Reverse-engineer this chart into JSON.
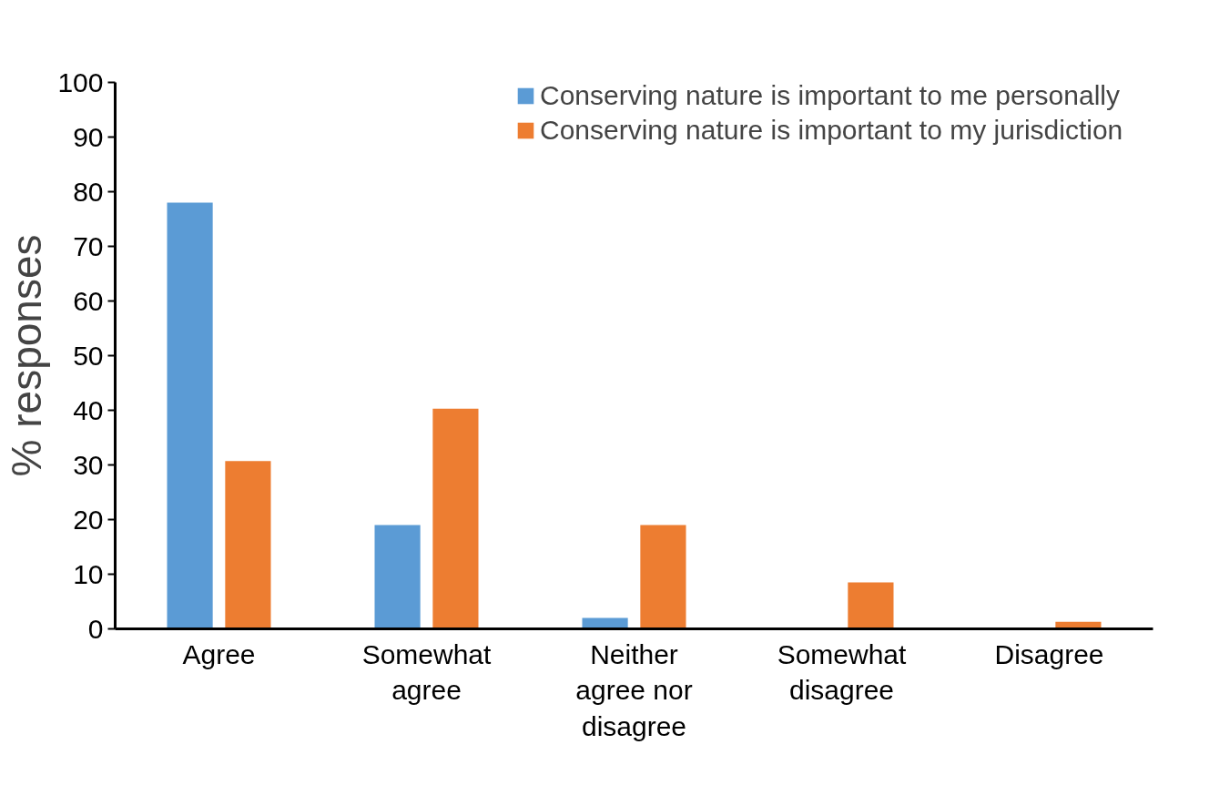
{
  "chart_data": {
    "type": "bar",
    "ylabel": "% responses",
    "categories": [
      "Agree",
      "Somewhat\nagree",
      "Neither\nagree nor\ndisagree",
      "Somewhat\ndisagree",
      "Disagree"
    ],
    "series": [
      {
        "name": "Conserving nature is important to me personally",
        "color": "#5b9bd5",
        "values": [
          78,
          19,
          2,
          0,
          0
        ]
      },
      {
        "name": "Conserving nature is important to my jurisdiction",
        "color": "#ed7d31",
        "values": [
          30.7,
          40.3,
          19,
          8.5,
          1.3
        ]
      }
    ],
    "ylim": [
      0,
      100
    ],
    "yticks": [
      0,
      10,
      20,
      30,
      40,
      50,
      60,
      70,
      80,
      90,
      100
    ],
    "grid": false,
    "legend": "top right"
  }
}
